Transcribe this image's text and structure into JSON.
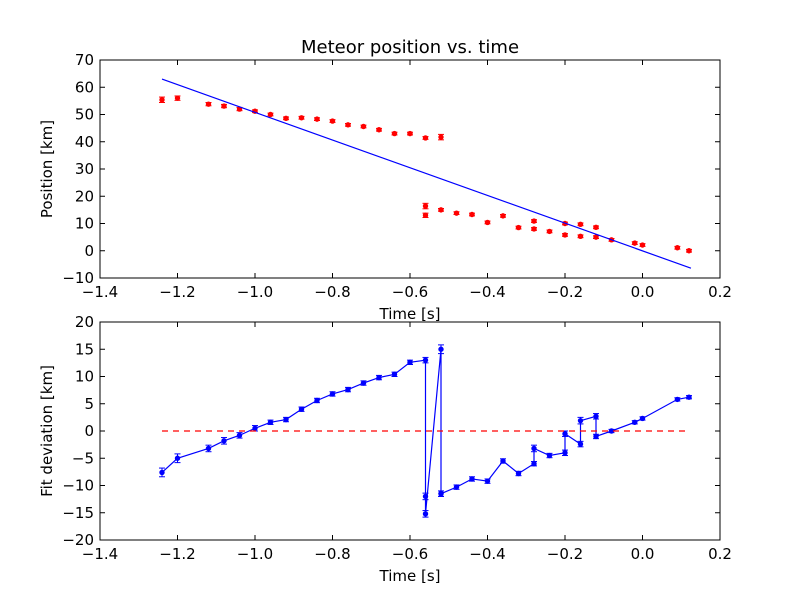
{
  "chart_data": [
    {
      "type": "scatter",
      "title": "Meteor position vs. time",
      "xlabel": "Time [s]",
      "ylabel": "Position [km]",
      "xlim": [
        -1.4,
        0.2
      ],
      "ylim": [
        -10,
        70
      ],
      "xticks": [
        -1.4,
        -1.2,
        -1.0,
        -0.8,
        -0.6,
        -0.4,
        -0.2,
        0.0,
        0.2
      ],
      "yticks": [
        -10,
        0,
        10,
        20,
        30,
        40,
        50,
        60,
        70
      ],
      "xtick_labels": [
        "−1.4",
        "−1.2",
        "−1.0",
        "−0.8",
        "−0.6",
        "−0.4",
        "−0.2",
        "0.0",
        "0.2"
      ],
      "ytick_labels": [
        "−10",
        "0",
        "10",
        "20",
        "30",
        "40",
        "50",
        "60",
        "70"
      ],
      "grid": false,
      "series": [
        {
          "kind": "errorbar-points",
          "color": "#ff0000",
          "x": [
            -1.24,
            -1.2,
            -1.12,
            -1.08,
            -1.04,
            -1.0,
            -0.96,
            -0.92,
            -0.88,
            -0.84,
            -0.8,
            -0.76,
            -0.72,
            -0.68,
            -0.64,
            -0.6,
            -0.56,
            -0.52,
            -0.56,
            -0.56,
            -0.52,
            -0.48,
            -0.44,
            -0.4,
            -0.36,
            -0.32,
            -0.28,
            -0.28,
            -0.24,
            -0.2,
            -0.2,
            -0.16,
            -0.16,
            -0.12,
            -0.12,
            -0.08,
            -0.02,
            0.0,
            0.09,
            0.12
          ],
          "y": [
            55.4,
            56.0,
            53.8,
            53.1,
            52.0,
            51.2,
            50.0,
            48.6,
            48.8,
            48.3,
            47.6,
            46.2,
            45.6,
            44.4,
            43.0,
            43.0,
            41.4,
            41.7,
            16.4,
            13.0,
            15.0,
            13.8,
            13.3,
            10.4,
            12.8,
            8.5,
            10.9,
            8.0,
            7.1,
            10.0,
            5.8,
            9.7,
            5.3,
            8.6,
            5.0,
            4.0,
            2.8,
            2.1,
            1.1,
            0.0
          ],
          "err": [
            1.0,
            0.8,
            0.6,
            0.6,
            0.6,
            0.5,
            0.5,
            0.5,
            0.5,
            0.5,
            0.5,
            0.5,
            0.5,
            0.5,
            0.5,
            0.5,
            0.5,
            1.0,
            1.0,
            0.8,
            0.5,
            0.5,
            0.5,
            0.5,
            0.5,
            0.5,
            0.5,
            0.5,
            0.5,
            0.5,
            0.5,
            0.5,
            0.5,
            0.5,
            0.5,
            0.5,
            0.5,
            0.5,
            0.5,
            0.5
          ]
        },
        {
          "kind": "line",
          "color": "#0000ff",
          "x": [
            -1.24,
            0.125
          ],
          "y": [
            63.0,
            -6.4
          ]
        }
      ]
    },
    {
      "type": "line",
      "title": "",
      "xlabel": "Time [s]",
      "ylabel": "Fit deviation [km]",
      "xlim": [
        -1.4,
        0.2
      ],
      "ylim": [
        -20,
        20
      ],
      "xticks": [
        -1.4,
        -1.2,
        -1.0,
        -0.8,
        -0.6,
        -0.4,
        -0.2,
        0.0,
        0.2
      ],
      "yticks": [
        -20,
        -15,
        -10,
        -5,
        0,
        5,
        10,
        15,
        20
      ],
      "xtick_labels": [
        "−1.4",
        "−1.2",
        "−1.0",
        "−0.8",
        "−0.6",
        "−0.4",
        "−0.2",
        "0.0",
        "0.2"
      ],
      "ytick_labels": [
        "−20",
        "−15",
        "−10",
        "−5",
        "0",
        "5",
        "10",
        "15",
        "20"
      ],
      "grid": false,
      "series": [
        {
          "kind": "errorbar-line",
          "color": "#0000ff",
          "x": [
            -1.24,
            -1.2,
            -1.12,
            -1.08,
            -1.04,
            -1.0,
            -0.96,
            -0.92,
            -0.88,
            -0.84,
            -0.8,
            -0.76,
            -0.72,
            -0.68,
            -0.64,
            -0.6,
            -0.56,
            -0.56,
            -0.56,
            -0.52,
            -0.52,
            -0.52,
            -0.48,
            -0.44,
            -0.4,
            -0.36,
            -0.32,
            -0.28,
            -0.28,
            -0.24,
            -0.2,
            -0.2,
            -0.16,
            -0.16,
            -0.12,
            -0.12,
            -0.08,
            -0.02,
            0.0,
            0.09,
            0.12
          ],
          "y": [
            -7.6,
            -5.0,
            -3.2,
            -1.8,
            -0.8,
            0.5,
            1.6,
            2.1,
            4.0,
            5.6,
            6.8,
            7.6,
            8.8,
            9.8,
            10.4,
            12.6,
            13.0,
            -12.0,
            -15.2,
            15.0,
            -11.5,
            -11.5,
            -10.3,
            -8.8,
            -9.2,
            -5.5,
            -7.8,
            -6.0,
            -3.2,
            -4.5,
            -4.0,
            -0.5,
            -2.4,
            1.9,
            2.7,
            -1.0,
            0.0,
            1.6,
            2.3,
            5.8,
            6.2
          ],
          "err": [
            0.8,
            0.8,
            0.6,
            0.6,
            0.5,
            0.5,
            0.4,
            0.4,
            0.4,
            0.4,
            0.4,
            0.4,
            0.4,
            0.4,
            0.4,
            0.4,
            0.5,
            0.6,
            0.6,
            0.8,
            0.5,
            0.5,
            0.4,
            0.4,
            0.4,
            0.4,
            0.4,
            0.4,
            0.6,
            0.4,
            0.5,
            0.5,
            0.5,
            0.6,
            0.5,
            0.4,
            0.3,
            0.3,
            0.3,
            0.3,
            0.3
          ]
        },
        {
          "kind": "dashed-line",
          "color": "#ff0000",
          "x": [
            -1.24,
            0.12
          ],
          "y": [
            0,
            0
          ]
        }
      ]
    }
  ]
}
